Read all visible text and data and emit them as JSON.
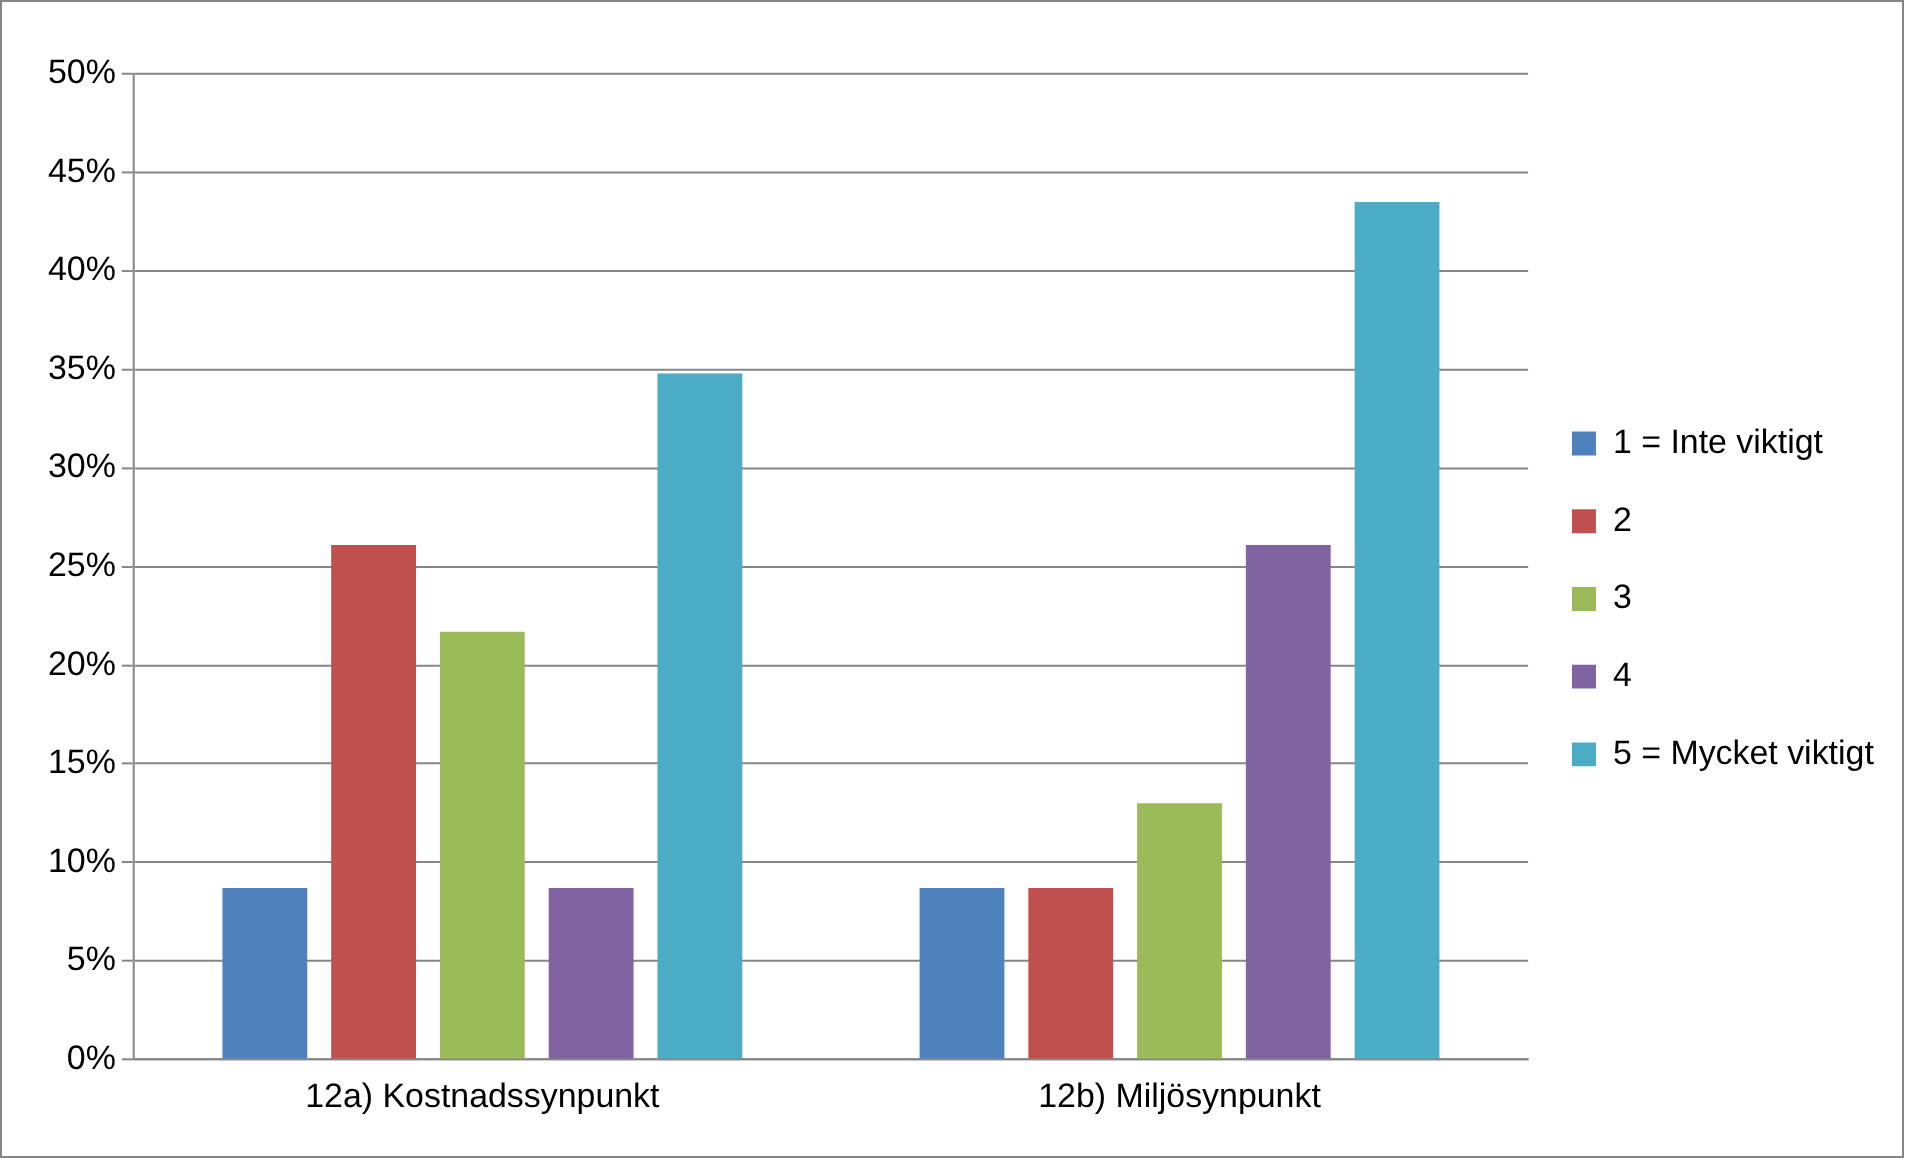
{
  "chart_data": {
    "type": "bar",
    "categories": [
      "12a) Kostnadssynpunkt",
      "12b) Miljösynpunkt"
    ],
    "series": [
      {
        "name": "1 = Inte viktigt",
        "color": "#4f81bd",
        "values": [
          8.7,
          8.7
        ]
      },
      {
        "name": "2",
        "color": "#c0504d",
        "values": [
          26.1,
          8.7
        ]
      },
      {
        "name": "3",
        "color": "#9bbb59",
        "values": [
          21.7,
          13.0
        ]
      },
      {
        "name": "4",
        "color": "#8064a2",
        "values": [
          8.7,
          26.1
        ]
      },
      {
        "name": "5 = Mycket viktigt",
        "color": "#4bacc6",
        "values": [
          34.8,
          43.5
        ]
      }
    ],
    "ylim": [
      0,
      50
    ],
    "yticks": [
      {
        "value": 0,
        "label": "0%"
      },
      {
        "value": 5,
        "label": "5%"
      },
      {
        "value": 10,
        "label": "10%"
      },
      {
        "value": 15,
        "label": "15%"
      },
      {
        "value": 20,
        "label": "20%"
      },
      {
        "value": 25,
        "label": "25%"
      },
      {
        "value": 30,
        "label": "30%"
      },
      {
        "value": 35,
        "label": "35%"
      },
      {
        "value": 40,
        "label": "40%"
      },
      {
        "value": 45,
        "label": "45%"
      },
      {
        "value": 50,
        "label": "50%"
      }
    ],
    "grid": "y",
    "legend": "right"
  }
}
